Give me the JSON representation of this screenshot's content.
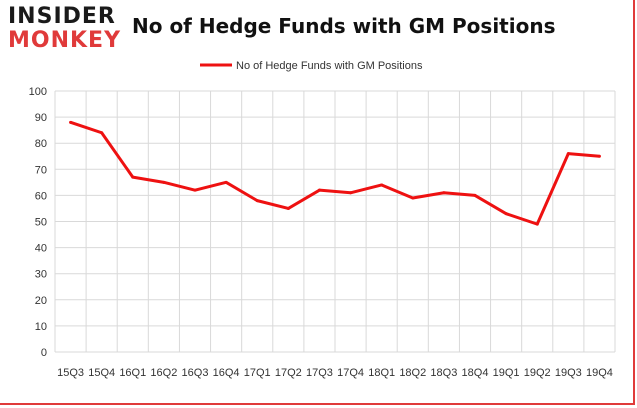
{
  "logo": {
    "top": "INSIDER",
    "bottom": "MONKEY"
  },
  "colors": {
    "series": "#ee1111",
    "grid": "#d9d9d9",
    "brand_red": "#e03a3a",
    "axis_text": "#333333"
  },
  "chart_data": {
    "type": "line",
    "title": "No of Hedge Funds with GM Positions",
    "categories": [
      "15Q3",
      "15Q4",
      "16Q1",
      "16Q2",
      "16Q3",
      "16Q4",
      "17Q1",
      "17Q2",
      "17Q3",
      "17Q4",
      "18Q1",
      "18Q2",
      "18Q3",
      "18Q4",
      "19Q1",
      "19Q2",
      "19Q3",
      "19Q4"
    ],
    "series": [
      {
        "name": "No of Hedge Funds with GM Positions",
        "values": [
          88,
          84,
          67,
          65,
          62,
          65,
          58,
          55,
          62,
          61,
          64,
          59,
          61,
          60,
          53,
          49,
          76,
          75
        ]
      }
    ],
    "ylim": [
      0,
      100
    ],
    "yticks": [
      0,
      10,
      20,
      30,
      40,
      50,
      60,
      70,
      80,
      90,
      100
    ],
    "grid": true,
    "legend": "top-center",
    "xlabel": "",
    "ylabel": ""
  }
}
